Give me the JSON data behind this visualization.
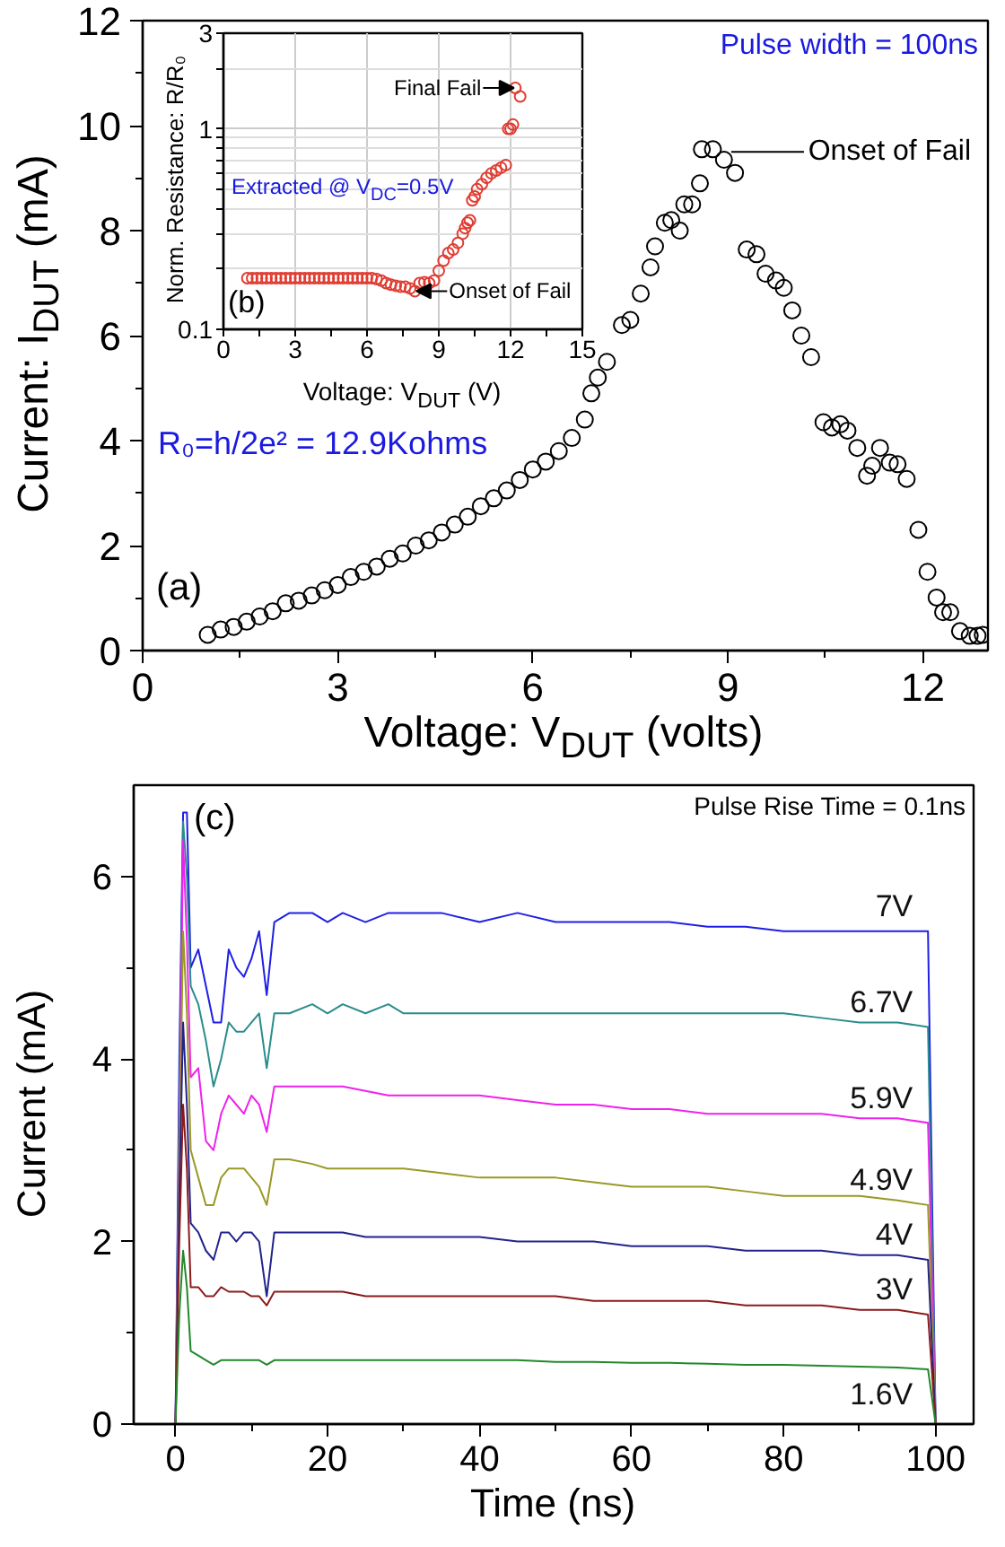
{
  "chart_data": [
    {
      "type": "scatter",
      "marker": "circle",
      "color": "#000000",
      "x": [
        1.0,
        1.2,
        1.4,
        1.6,
        1.8,
        2.0,
        2.2,
        2.4,
        2.6,
        2.8,
        3.0,
        3.2,
        3.4,
        3.6,
        3.8,
        4.0,
        4.2,
        4.4,
        4.6,
        4.8,
        5.0,
        5.2,
        5.4,
        5.6,
        5.8,
        6.0,
        6.2,
        6.4,
        6.6,
        6.8,
        6.9,
        7.0,
        7.14,
        7.37,
        7.5,
        7.66,
        7.81,
        7.88,
        8.03,
        8.13,
        8.26,
        8.33,
        8.45,
        8.57,
        8.6,
        8.77,
        8.94,
        9.11,
        9.29,
        9.44,
        9.58,
        9.74,
        9.86,
        9.99,
        10.13,
        10.28,
        10.47,
        10.6,
        10.73,
        10.84,
        10.99,
        11.14,
        11.22,
        11.34,
        11.49,
        11.61,
        11.75,
        11.93,
        12.07,
        12.21,
        12.31,
        12.42,
        12.57,
        12.72,
        12.84,
        12.92
      ],
      "values": [
        0.3,
        0.4,
        0.45,
        0.55,
        0.65,
        0.75,
        0.9,
        0.95,
        1.05,
        1.15,
        1.25,
        1.4,
        1.5,
        1.6,
        1.75,
        1.85,
        2.0,
        2.1,
        2.25,
        2.4,
        2.55,
        2.75,
        2.9,
        3.05,
        3.25,
        3.45,
        3.6,
        3.8,
        4.05,
        4.4,
        4.9,
        5.2,
        5.5,
        6.2,
        6.3,
        6.8,
        7.3,
        7.7,
        8.15,
        8.2,
        8.0,
        8.5,
        8.5,
        8.9,
        9.55,
        9.55,
        9.35,
        9.1,
        7.64,
        7.55,
        7.18,
        7.05,
        6.91,
        6.48,
        6.0,
        5.59,
        4.35,
        4.25,
        4.31,
        4.19,
        3.86,
        3.33,
        3.52,
        3.86,
        3.58,
        3.55,
        3.27,
        2.3,
        1.5,
        1.01,
        0.73,
        0.73,
        0.37,
        0.28,
        0.28,
        0.3
      ],
      "xlabel": "Voltage: V$_{DUT}$ (volts)",
      "ylabel": "Current: I$_{DUT}$ (mA)",
      "xlim": [
        0,
        13
      ],
      "ylim": [
        0,
        12
      ],
      "xticks": [
        0,
        3,
        6,
        9,
        12
      ],
      "yticks": [
        0,
        2,
        4,
        6,
        8,
        10,
        12
      ],
      "annotations": [
        "Pulse width = 100ns",
        {
          "text": "Onset of Fail",
          "x": 9.0,
          "y": 9.5
        },
        "R₀=h/2e² = 12.9Kohms",
        "(a)"
      ]
    },
    {
      "type": "scatter",
      "marker": "circle",
      "color": "#e03c31",
      "log": "y",
      "grid": true,
      "x": [
        1.0,
        1.2,
        1.4,
        1.6,
        1.8,
        2.0,
        2.2,
        2.4,
        2.6,
        2.8,
        3.0,
        3.2,
        3.4,
        3.6,
        3.8,
        4.0,
        4.2,
        4.4,
        4.6,
        4.8,
        5.0,
        5.2,
        5.4,
        5.6,
        5.8,
        6.0,
        6.2,
        6.4,
        6.6,
        6.8,
        7.0,
        7.2,
        7.4,
        7.6,
        7.8,
        8.0,
        8.2,
        8.4,
        8.6,
        8.8,
        9.0,
        9.2,
        9.4,
        9.6,
        9.8,
        10.0,
        10.1,
        10.2,
        10.3,
        10.4,
        10.5,
        10.6,
        10.8,
        11.0,
        11.2,
        11.4,
        11.6,
        11.8,
        11.9,
        12.0,
        12.1,
        12.2,
        12.4
      ],
      "values": [
        0.18,
        0.18,
        0.18,
        0.18,
        0.18,
        0.18,
        0.18,
        0.18,
        0.18,
        0.18,
        0.18,
        0.18,
        0.18,
        0.18,
        0.18,
        0.18,
        0.18,
        0.18,
        0.18,
        0.18,
        0.18,
        0.18,
        0.18,
        0.18,
        0.18,
        0.18,
        0.18,
        0.178,
        0.175,
        0.17,
        0.167,
        0.165,
        0.163,
        0.163,
        0.16,
        0.155,
        0.17,
        0.172,
        0.17,
        0.175,
        0.196,
        0.22,
        0.24,
        0.25,
        0.27,
        0.3,
        0.32,
        0.34,
        0.35,
        0.44,
        0.46,
        0.5,
        0.53,
        0.57,
        0.6,
        0.62,
        0.64,
        0.66,
        1.0,
        1.0,
        1.05,
        1.6,
        1.45
      ],
      "xlabel": "Voltage: V$_{DUT}$ (V)",
      "ylabel": "Norm. Resistance: R/R₀",
      "xlim": [
        0,
        15
      ],
      "ylim": [
        0.1,
        3
      ],
      "xticks": [
        0,
        3,
        6,
        9,
        12,
        15
      ],
      "yticks": [
        0.1,
        1,
        3
      ],
      "annotations": [
        {
          "text": "Final Fail",
          "x": 12.2,
          "y": 1.6
        },
        {
          "text": "Onset of Fail",
          "x": 8.0,
          "y": 0.155
        },
        "Extracted @ V$_{DC}$=0.5V",
        "(b)"
      ]
    },
    {
      "type": "line",
      "xlabel": "Time (ns)",
      "ylabel": "Current (mA)",
      "xlim": [
        -5.5,
        105
      ],
      "ylim": [
        0,
        7
      ],
      "xticks": [
        0,
        20,
        40,
        60,
        80,
        100
      ],
      "yticks": [
        0,
        2,
        4,
        6
      ],
      "x": [
        0,
        0.5,
        1,
        1.5,
        2,
        3,
        4,
        5,
        6,
        7,
        8,
        9,
        10,
        11,
        12,
        13,
        15,
        18,
        20,
        22,
        25,
        28,
        30,
        35,
        40,
        45,
        50,
        55,
        60,
        65,
        70,
        75,
        80,
        85,
        90,
        95,
        99,
        100
      ],
      "series": [
        {
          "name": "7V",
          "color": "#1f1fe6",
          "values": [
            0,
            4,
            6.7,
            6.7,
            5.0,
            5.2,
            4.8,
            4.4,
            4.4,
            5.2,
            5.0,
            4.9,
            5.1,
            5.4,
            4.7,
            5.5,
            5.6,
            5.6,
            5.5,
            5.6,
            5.5,
            5.6,
            5.6,
            5.6,
            5.5,
            5.6,
            5.5,
            5.5,
            5.5,
            5.5,
            5.45,
            5.45,
            5.4,
            5.4,
            5.4,
            5.4,
            5.4,
            0
          ]
        },
        {
          "name": "6.7V",
          "color": "#2a8c8c",
          "values": [
            0,
            3.5,
            6.6,
            6.0,
            4.8,
            4.6,
            4.2,
            3.7,
            4.0,
            4.4,
            4.3,
            4.3,
            4.4,
            4.5,
            3.9,
            4.5,
            4.5,
            4.6,
            4.5,
            4.6,
            4.5,
            4.6,
            4.5,
            4.5,
            4.5,
            4.5,
            4.5,
            4.5,
            4.5,
            4.5,
            4.5,
            4.5,
            4.5,
            4.45,
            4.4,
            4.4,
            4.35,
            0
          ]
        },
        {
          "name": "5.9V",
          "color": "#ee22ee",
          "values": [
            0,
            3,
            6.4,
            5.3,
            3.8,
            3.9,
            3.1,
            3.0,
            3.4,
            3.6,
            3.5,
            3.4,
            3.6,
            3.5,
            3.2,
            3.7,
            3.7,
            3.7,
            3.7,
            3.7,
            3.65,
            3.6,
            3.6,
            3.6,
            3.6,
            3.55,
            3.5,
            3.5,
            3.45,
            3.45,
            3.4,
            3.4,
            3.4,
            3.4,
            3.35,
            3.35,
            3.3,
            0
          ]
        },
        {
          "name": "4.9V",
          "color": "#999926",
          "values": [
            0,
            2.8,
            5.4,
            4.5,
            3.0,
            2.7,
            2.4,
            2.4,
            2.7,
            2.8,
            2.8,
            2.8,
            2.7,
            2.6,
            2.4,
            2.9,
            2.9,
            2.85,
            2.8,
            2.8,
            2.8,
            2.8,
            2.8,
            2.75,
            2.7,
            2.7,
            2.7,
            2.65,
            2.6,
            2.6,
            2.6,
            2.55,
            2.5,
            2.5,
            2.5,
            2.45,
            2.4,
            0
          ]
        },
        {
          "name": "4V",
          "color": "#23238c",
          "values": [
            0,
            2.5,
            4.4,
            3.5,
            2.2,
            2.1,
            1.9,
            1.8,
            2.1,
            2.1,
            2.0,
            2.1,
            2.1,
            2.0,
            1.4,
            2.1,
            2.1,
            2.1,
            2.1,
            2.1,
            2.05,
            2.05,
            2.05,
            2.05,
            2.05,
            2.0,
            2.0,
            2.0,
            1.95,
            1.95,
            1.95,
            1.9,
            1.9,
            1.9,
            1.85,
            1.85,
            1.8,
            0
          ]
        },
        {
          "name": "3V",
          "color": "#8c1a1a",
          "values": [
            0,
            2,
            3.5,
            2.8,
            1.5,
            1.5,
            1.4,
            1.4,
            1.5,
            1.45,
            1.45,
            1.45,
            1.4,
            1.4,
            1.3,
            1.45,
            1.45,
            1.45,
            1.45,
            1.45,
            1.4,
            1.4,
            1.4,
            1.4,
            1.4,
            1.4,
            1.4,
            1.35,
            1.35,
            1.35,
            1.35,
            1.3,
            1.3,
            1.3,
            1.25,
            1.25,
            1.2,
            0
          ]
        },
        {
          "name": "1.6V",
          "color": "#22882a",
          "values": [
            0,
            1.2,
            1.9,
            1.5,
            0.8,
            0.75,
            0.7,
            0.65,
            0.7,
            0.7,
            0.7,
            0.7,
            0.7,
            0.7,
            0.65,
            0.7,
            0.7,
            0.7,
            0.7,
            0.7,
            0.7,
            0.7,
            0.7,
            0.7,
            0.7,
            0.7,
            0.68,
            0.68,
            0.67,
            0.67,
            0.66,
            0.65,
            0.65,
            0.64,
            0.63,
            0.62,
            0.6,
            0
          ]
        }
      ],
      "annotations": [
        "Pulse Rise Time = 0.1ns",
        "(c)"
      ]
    }
  ]
}
